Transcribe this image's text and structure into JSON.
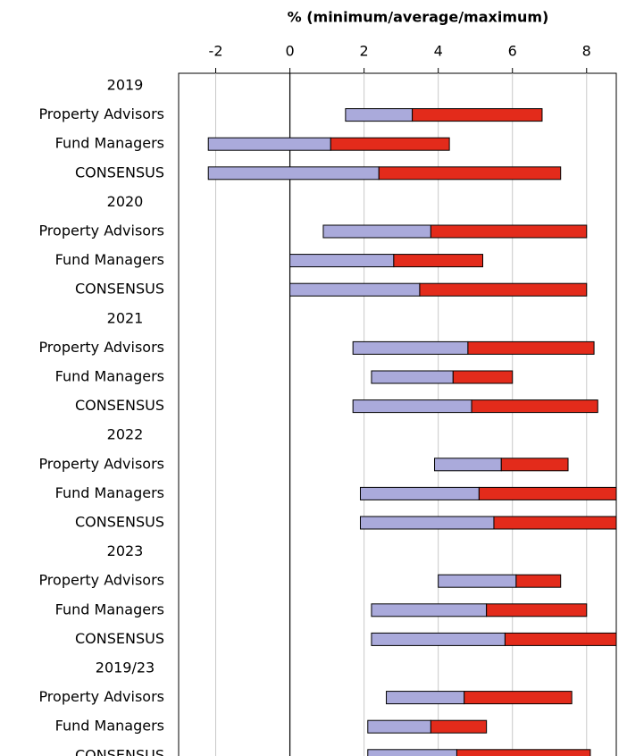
{
  "chart_data": {
    "type": "range-bar",
    "title": "% (minimum/average/maximum)",
    "xlim": [
      -3,
      8.8
    ],
    "xticks": [
      -2,
      0,
      2,
      4,
      6,
      8
    ],
    "grid": true,
    "low_color": "#aaaadb",
    "high_color": "#e32b1b",
    "groups": [
      {
        "label": "2019",
        "rows": [
          {
            "label": "Property Advisors",
            "min": 1.5,
            "avg": 3.3,
            "max": 6.8
          },
          {
            "label": "Fund Managers",
            "min": -2.2,
            "avg": 1.1,
            "max": 4.3
          },
          {
            "label": "CONSENSUS",
            "min": -2.2,
            "avg": 2.4,
            "max": 7.3
          }
        ]
      },
      {
        "label": "2020",
        "rows": [
          {
            "label": "Property Advisors",
            "min": 0.9,
            "avg": 3.8,
            "max": 8.0
          },
          {
            "label": "Fund Managers",
            "min": 0,
            "avg": 2.8,
            "max": 5.2
          },
          {
            "label": "CONSENSUS",
            "min": 0,
            "avg": 3.5,
            "max": 8.0
          }
        ]
      },
      {
        "label": "2021",
        "rows": [
          {
            "label": "Property Advisors",
            "min": 1.7,
            "avg": 4.8,
            "max": 8.2
          },
          {
            "label": "Fund Managers",
            "min": 2.2,
            "avg": 4.4,
            "max": 6.0
          },
          {
            "label": "CONSENSUS",
            "min": 1.7,
            "avg": 4.9,
            "max": 8.3
          }
        ]
      },
      {
        "label": "2022",
        "rows": [
          {
            "label": "Property Advisors",
            "min": 3.9,
            "avg": 5.7,
            "max": 7.5
          },
          {
            "label": "Fund Managers",
            "min": 1.9,
            "avg": 5.1,
            "max": 8.8
          },
          {
            "label": "CONSENSUS",
            "min": 1.9,
            "avg": 5.5,
            "max": 8.8
          }
        ]
      },
      {
        "label": "2023",
        "rows": [
          {
            "label": "Property Advisors",
            "min": 4.0,
            "avg": 6.1,
            "max": 7.3
          },
          {
            "label": "Fund Managers",
            "min": 2.2,
            "avg": 5.3,
            "max": 8.0
          },
          {
            "label": "CONSENSUS",
            "min": 2.2,
            "avg": 5.8,
            "max": 8.8
          }
        ]
      },
      {
        "label": "2019/23",
        "rows": [
          {
            "label": "Property Advisors",
            "min": 2.6,
            "avg": 4.7,
            "max": 7.6
          },
          {
            "label": "Fund Managers",
            "min": 2.1,
            "avg": 3.8,
            "max": 5.3
          },
          {
            "label": "CONSENSUS",
            "min": 2.1,
            "avg": 4.5,
            "max": 8.1
          }
        ]
      }
    ]
  }
}
